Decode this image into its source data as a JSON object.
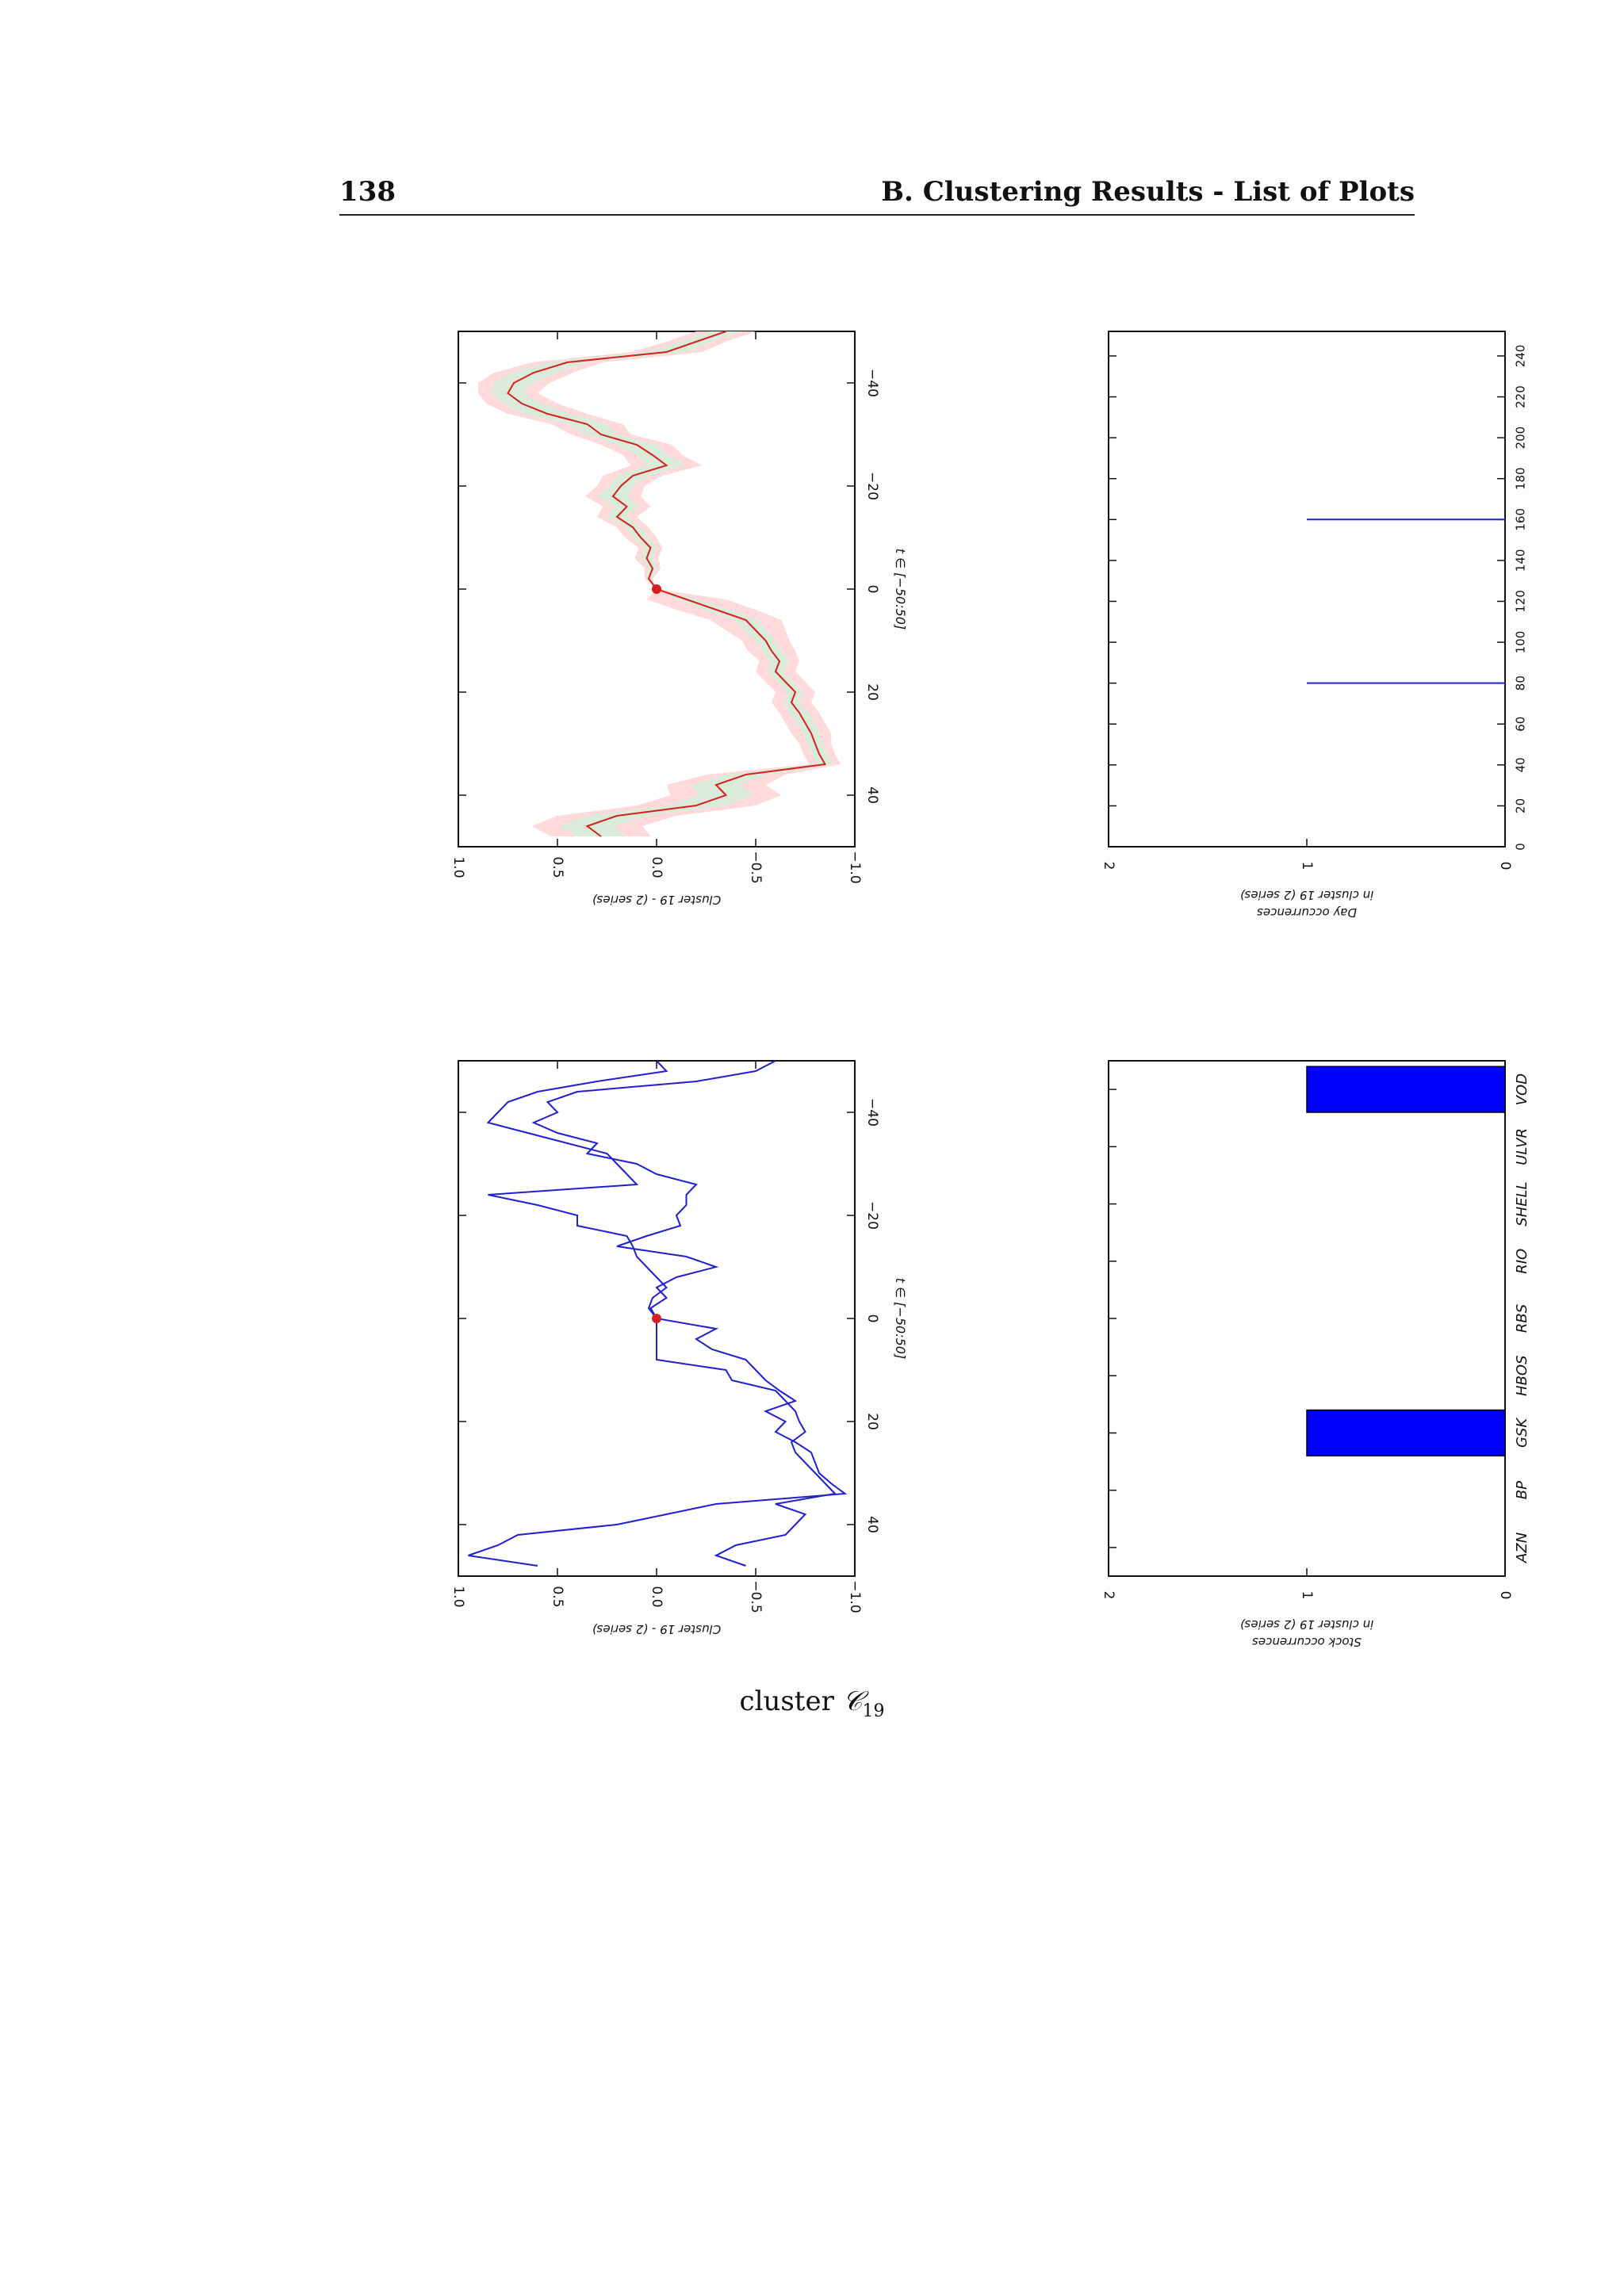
{
  "page": {
    "number": "138",
    "running_title": "B. Clustering Results - List of Plots",
    "caption_text": "cluster ",
    "caption_symbol": "𝒞",
    "caption_subscript": "19"
  },
  "colors": {
    "mean_line": "#d42020",
    "band_outer": "#ffd6d6",
    "band_inner": "#d9ecd9",
    "series_line": "#2020d0",
    "bar_fill": "#0000ff",
    "origin_marker": "#d42020"
  },
  "chart_data": [
    {
      "id": "mean",
      "type": "line",
      "rotated": "90° clockwise",
      "ylabel": "Cluster 19 - (2 series)",
      "xlabel": "t ∈ [−50:50]",
      "xlim": [
        -50,
        50
      ],
      "ylim": [
        -1.0,
        1.0
      ],
      "xticks": [
        -40,
        -20,
        0,
        20,
        40
      ],
      "xtick_labels": [
        "−40",
        "−20",
        "0",
        "20",
        "40"
      ],
      "yticks": [
        1.0,
        0.5,
        0.0,
        -0.5,
        -1.0
      ],
      "ytick_labels": [
        "1.0",
        "0.5",
        "0.0",
        "−0.5",
        "−1.0"
      ],
      "x": [
        -50,
        -48,
        -46,
        -44,
        -42,
        -40,
        -38,
        -36,
        -34,
        -32,
        -30,
        -28,
        -26,
        -24,
        -22,
        -20,
        -18,
        -16,
        -14,
        -12,
        -10,
        -8,
        -6,
        -4,
        -2,
        0,
        2,
        4,
        6,
        8,
        10,
        12,
        14,
        16,
        18,
        20,
        22,
        24,
        26,
        28,
        30,
        32,
        34,
        36,
        38,
        40,
        42,
        44,
        46,
        48
      ],
      "series": [
        {
          "values": [
            -0.35,
            -0.2,
            -0.05,
            0.45,
            0.62,
            0.72,
            0.75,
            0.68,
            0.55,
            0.35,
            0.28,
            0.1,
            0.02,
            -0.05,
            0.12,
            0.18,
            0.22,
            0.15,
            0.2,
            0.12,
            0.08,
            0.03,
            0.05,
            0.02,
            0.04,
            0.0,
            -0.15,
            -0.3,
            -0.45,
            -0.5,
            -0.55,
            -0.58,
            -0.62,
            -0.6,
            -0.65,
            -0.7,
            -0.68,
            -0.72,
            -0.75,
            -0.78,
            -0.8,
            -0.82,
            -0.85,
            -0.45,
            -0.3,
            -0.35,
            -0.2,
            0.2,
            0.35,
            0.28
          ]
        }
      ],
      "band_inner_halfwidth": [
        0.08,
        0.08,
        0.1,
        0.1,
        0.12,
        0.1,
        0.08,
        0.1,
        0.12,
        0.1,
        0.08,
        0.1,
        0.08,
        0.1,
        0.08,
        0.06,
        0.08,
        0.06,
        0.05,
        0.04,
        0.04,
        0.03,
        0.03,
        0.02,
        0.01,
        0.0,
        0.05,
        0.07,
        0.06,
        0.06,
        0.05,
        0.05,
        0.05,
        0.04,
        0.04,
        0.04,
        0.04,
        0.05,
        0.05,
        0.04,
        0.04,
        0.04,
        0.04,
        0.1,
        0.12,
        0.14,
        0.15,
        0.15,
        0.14,
        0.12
      ],
      "band_outer_halfwidth": [
        0.15,
        0.15,
        0.18,
        0.18,
        0.2,
        0.18,
        0.15,
        0.18,
        0.2,
        0.18,
        0.15,
        0.18,
        0.15,
        0.18,
        0.15,
        0.12,
        0.14,
        0.12,
        0.1,
        0.08,
        0.08,
        0.06,
        0.06,
        0.04,
        0.02,
        0.0,
        0.2,
        0.2,
        0.18,
        0.15,
        0.12,
        0.12,
        0.1,
        0.1,
        0.1,
        0.1,
        0.1,
        0.1,
        0.1,
        0.1,
        0.08,
        0.08,
        0.08,
        0.2,
        0.25,
        0.28,
        0.3,
        0.3,
        0.28,
        0.25
      ],
      "origin_point": [
        0,
        0.0
      ]
    },
    {
      "id": "series",
      "type": "line",
      "rotated": "90° clockwise",
      "ylabel": "Cluster 19 - (2 series)",
      "xlabel": "t ∈ [−50:50]",
      "xlim": [
        -50,
        50
      ],
      "ylim": [
        -1.0,
        1.0
      ],
      "xticks": [
        -40,
        -20,
        0,
        20,
        40
      ],
      "xtick_labels": [
        "−40",
        "−20",
        "0",
        "20",
        "40"
      ],
      "yticks": [
        1.0,
        0.5,
        0.0,
        -0.5,
        -1.0
      ],
      "ytick_labels": [
        "1.0",
        "0.5",
        "0.0",
        "−0.5",
        "−1.0"
      ],
      "x": [
        -50,
        -48,
        -46,
        -44,
        -42,
        -40,
        -38,
        -36,
        -34,
        -32,
        -30,
        -28,
        -26,
        -24,
        -22,
        -20,
        -18,
        -16,
        -14,
        -12,
        -10,
        -8,
        -6,
        -4,
        -2,
        0,
        2,
        4,
        6,
        8,
        10,
        12,
        14,
        16,
        18,
        20,
        22,
        24,
        26,
        28,
        30,
        32,
        34,
        36,
        38,
        40,
        42,
        44,
        46,
        48
      ],
      "series": [
        {
          "values": [
            0.0,
            -0.05,
            0.3,
            0.6,
            0.75,
            0.8,
            0.85,
            0.65,
            0.45,
            0.25,
            0.2,
            0.15,
            0.1,
            0.85,
            0.6,
            0.4,
            0.4,
            0.15,
            0.12,
            0.1,
            0.05,
            0.0,
            -0.05,
            0.02,
            0.04,
            0.0,
            0.0,
            0.0,
            0.0,
            0.0,
            -0.35,
            -0.38,
            -0.6,
            -0.65,
            -0.7,
            -0.72,
            -0.75,
            -0.68,
            -0.7,
            -0.75,
            -0.8,
            -0.85,
            -0.9,
            -0.6,
            -0.75,
            -0.7,
            -0.65,
            -0.4,
            -0.3,
            -0.45
          ]
        },
        {
          "values": [
            -0.6,
            -0.5,
            -0.2,
            0.4,
            0.55,
            0.5,
            0.62,
            0.5,
            0.3,
            0.35,
            0.1,
            0.0,
            -0.2,
            -0.15,
            -0.15,
            -0.1,
            -0.12,
            0.05,
            0.2,
            -0.15,
            -0.3,
            -0.1,
            0.0,
            -0.05,
            0.03,
            0.0,
            -0.3,
            -0.2,
            -0.28,
            -0.45,
            -0.5,
            -0.55,
            -0.62,
            -0.7,
            -0.55,
            -0.65,
            -0.6,
            -0.7,
            -0.78,
            -0.8,
            -0.82,
            -0.88,
            -0.95,
            -0.3,
            -0.05,
            0.2,
            0.7,
            0.8,
            0.95,
            0.6
          ]
        }
      ],
      "origin_point": [
        0,
        0.0
      ]
    },
    {
      "id": "days",
      "type": "bar",
      "rotated": "90° clockwise",
      "ylabel_line1": "Day occurrences",
      "ylabel_line2": "in cluster 19 (2 series)",
      "xlim": [
        0,
        252
      ],
      "ylim": [
        0,
        2
      ],
      "xticks": [
        0,
        20,
        40,
        60,
        80,
        100,
        120,
        140,
        160,
        180,
        200,
        220,
        240
      ],
      "xtick_labels": [
        "0",
        "20",
        "40",
        "60",
        "80",
        "100",
        "120",
        "140",
        "160",
        "180",
        "200",
        "220",
        "240"
      ],
      "yticks": [
        0,
        1,
        2
      ],
      "ytick_labels": [
        "0",
        "1",
        "2"
      ],
      "x": [
        80,
        160
      ],
      "values": [
        1,
        1
      ]
    },
    {
      "id": "stocks",
      "type": "bar",
      "rotated": "90° clockwise",
      "ylabel_line1": "Stock occurrences",
      "ylabel_line2": "in cluster 19 (2 series)",
      "categories": [
        "AZN",
        "BP",
        "GSK",
        "HBOS",
        "RBS",
        "RIO",
        "SHELL",
        "ULVR",
        "VOD"
      ],
      "values": [
        0,
        0,
        1,
        0,
        0,
        0,
        0,
        0,
        1
      ],
      "ylim": [
        0,
        2
      ],
      "yticks": [
        0,
        1,
        2
      ],
      "ytick_labels": [
        "0",
        "1",
        "2"
      ]
    }
  ]
}
